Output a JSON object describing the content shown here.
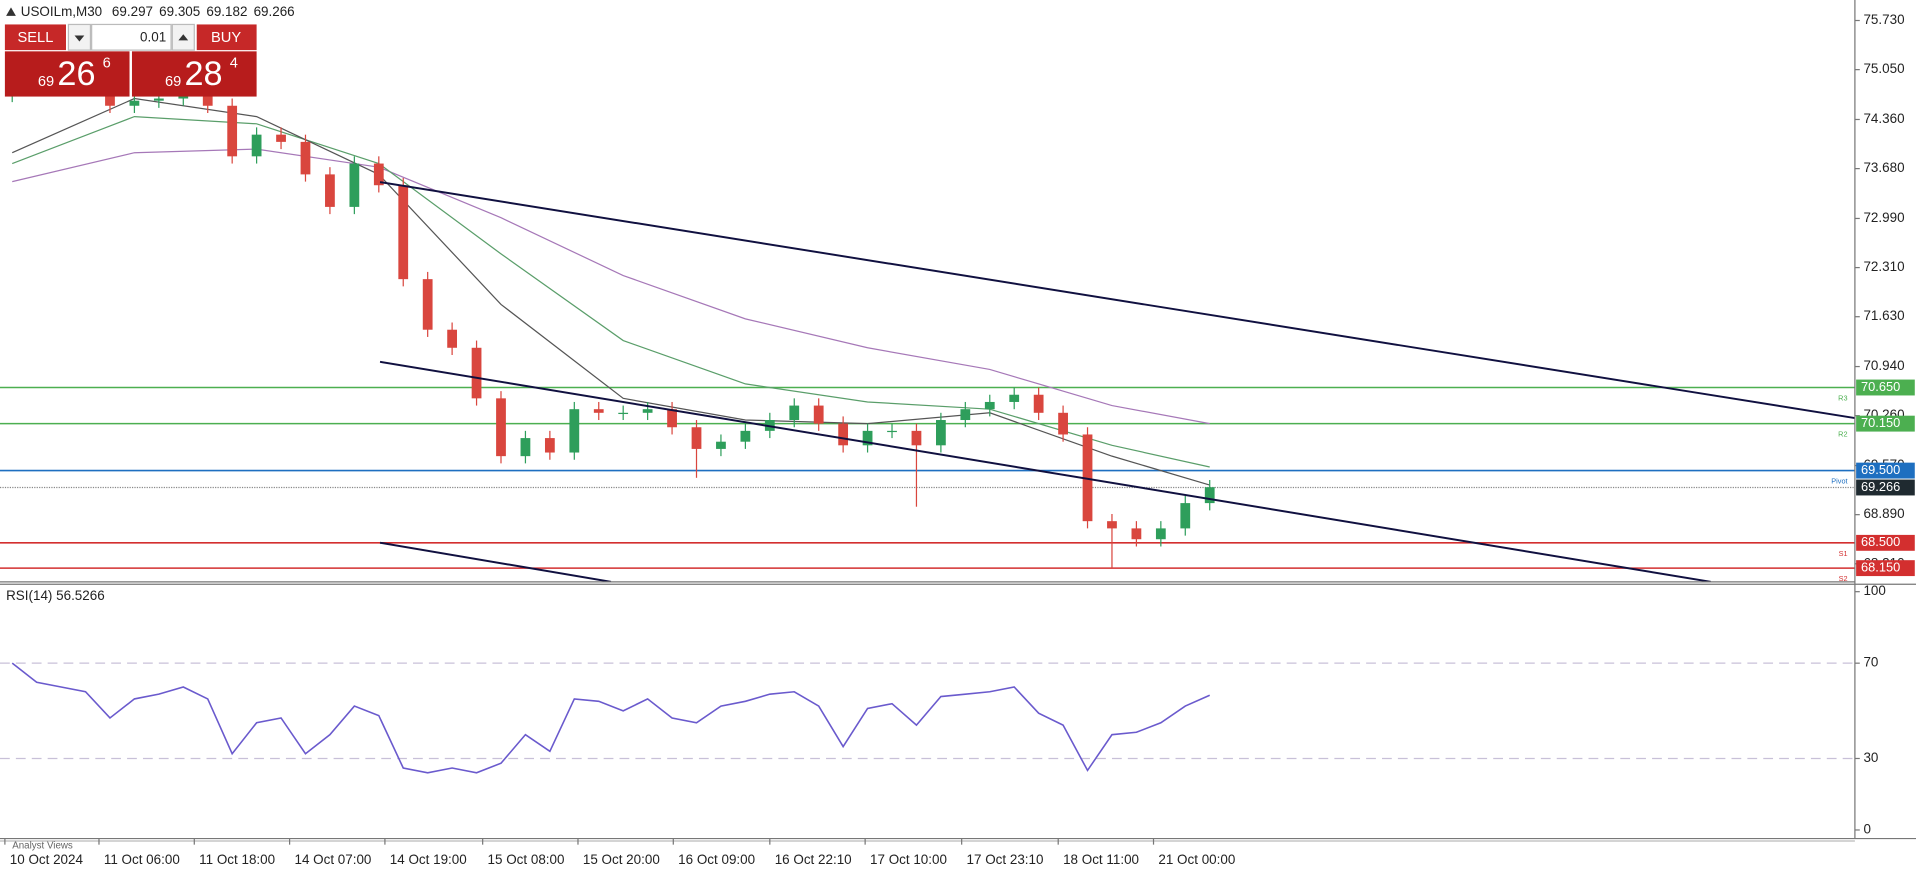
{
  "header": {
    "symbol": "USOILm,M30",
    "ohlc": [
      69.297,
      69.305,
      69.182,
      69.266
    ]
  },
  "trade_panel": {
    "sell": "SELL",
    "buy": "BUY",
    "lot": 0.01,
    "bid": {
      "big": "69",
      "main": "26",
      "small": "6"
    },
    "ask": {
      "big": "69",
      "main": "28",
      "small": "4"
    }
  },
  "footer": {
    "tab": "Analyst Views"
  },
  "chart_data": [
    {
      "type": "candlestick",
      "open": [
        74.7,
        74.8,
        74.9,
        74.92,
        74.8,
        74.55,
        74.62,
        74.65,
        74.7,
        74.55,
        73.85,
        74.15,
        74.05,
        73.6,
        73.15,
        73.75,
        73.45,
        72.15,
        71.45,
        71.2,
        70.5,
        69.7,
        69.95,
        69.75,
        70.35,
        70.3,
        70.3,
        70.35,
        70.1,
        69.8,
        69.9,
        70.05,
        70.2,
        70.4,
        70.15,
        69.85,
        70.05,
        70.05,
        69.85,
        70.2,
        70.35,
        70.45,
        70.55,
        70.3,
        70.0,
        68.8,
        68.7,
        68.55,
        68.7,
        69.05
      ],
      "high": [
        74.9,
        75.0,
        75.02,
        75.02,
        74.9,
        74.72,
        74.75,
        74.8,
        74.8,
        74.65,
        74.25,
        74.25,
        74.15,
        73.7,
        73.85,
        73.85,
        73.55,
        72.25,
        71.55,
        71.3,
        70.6,
        70.05,
        70.05,
        70.45,
        70.45,
        70.4,
        70.45,
        70.45,
        70.2,
        70.0,
        70.15,
        70.3,
        70.5,
        70.5,
        70.25,
        70.15,
        70.15,
        70.15,
        70.3,
        70.45,
        70.55,
        70.65,
        70.65,
        70.4,
        70.1,
        68.9,
        68.8,
        68.8,
        69.15,
        69.37
      ],
      "low": [
        74.6,
        74.7,
        74.8,
        74.7,
        74.45,
        74.45,
        74.52,
        74.55,
        74.45,
        73.75,
        73.75,
        73.95,
        73.5,
        73.05,
        73.05,
        73.35,
        72.05,
        71.35,
        71.1,
        70.4,
        69.6,
        69.6,
        69.65,
        69.65,
        70.2,
        70.2,
        70.2,
        70.0,
        69.4,
        69.7,
        69.8,
        69.95,
        70.1,
        70.05,
        69.75,
        69.75,
        69.95,
        69.0,
        69.75,
        70.1,
        70.25,
        70.35,
        70.2,
        69.9,
        68.7,
        68.15,
        68.45,
        68.45,
        68.6,
        68.95
      ],
      "close": [
        74.8,
        74.9,
        74.92,
        74.8,
        74.55,
        74.62,
        74.65,
        74.7,
        74.55,
        73.85,
        74.15,
        74.05,
        73.6,
        73.15,
        73.75,
        73.45,
        72.15,
        71.45,
        71.2,
        70.5,
        69.7,
        69.95,
        69.75,
        70.35,
        70.3,
        70.3,
        70.35,
        70.1,
        69.8,
        69.9,
        70.05,
        70.2,
        70.4,
        70.15,
        69.85,
        70.05,
        70.05,
        69.85,
        70.2,
        70.35,
        70.45,
        70.55,
        70.3,
        70.0,
        68.8,
        68.7,
        68.55,
        68.7,
        69.05,
        69.27
      ],
      "colors": {
        "up": "#2e9e5b",
        "down": "#d9463e"
      },
      "xlim": [
        -0.5,
        75.4
      ],
      "ylim": [
        67.96,
        75.98
      ],
      "yticks": [
        {
          "value": 75.73,
          "label": "75.730"
        },
        {
          "value": 75.05,
          "label": "75.050"
        },
        {
          "value": 74.36,
          "label": "74.360"
        },
        {
          "value": 73.68,
          "label": "73.680"
        },
        {
          "value": 72.99,
          "label": "72.990"
        },
        {
          "value": 72.31,
          "label": "72.310"
        },
        {
          "value": 71.63,
          "label": "71.630"
        },
        {
          "value": 70.94,
          "label": "70.940"
        },
        {
          "value": 70.26,
          "label": "70.260"
        },
        {
          "value": 69.57,
          "label": "69.570"
        },
        {
          "value": 68.89,
          "label": "68.890"
        },
        {
          "value": 68.21,
          "label": "68.210"
        }
      ],
      "xticks": [
        {
          "value": -0.3,
          "label": "10 Oct 2024"
        },
        {
          "value": 3.55,
          "label": "11 Oct 06:00"
        },
        {
          "value": 7.45,
          "label": "11 Oct 18:00"
        },
        {
          "value": 11.35,
          "label": "14 Oct 07:00"
        },
        {
          "value": 15.25,
          "label": "14 Oct 19:00"
        },
        {
          "value": 19.25,
          "label": "15 Oct 08:00"
        },
        {
          "value": 23.15,
          "label": "15 Oct 20:00"
        },
        {
          "value": 27.05,
          "label": "16 Oct 09:00"
        },
        {
          "value": 31,
          "label": "16 Oct 22:10"
        },
        {
          "value": 34.9,
          "label": "17 Oct 10:00"
        },
        {
          "value": 38.85,
          "label": "17 Oct 23:10"
        },
        {
          "value": 42.8,
          "label": "18 Oct 11:00"
        },
        {
          "value": 46.7,
          "label": "21 Oct 00:00"
        }
      ],
      "ma_index": [
        0,
        5,
        10,
        15,
        20,
        25,
        30,
        35,
        40,
        45,
        49
      ],
      "moving_averages": [
        {
          "color": "#a678b8",
          "values": [
            73.5,
            73.9,
            73.95,
            73.7,
            73.0,
            72.2,
            71.6,
            71.2,
            70.9,
            70.4,
            70.15
          ]
        },
        {
          "color": "#5a9e6a",
          "values": [
            73.75,
            74.4,
            74.3,
            73.75,
            72.5,
            71.3,
            70.7,
            70.45,
            70.35,
            69.85,
            69.55
          ]
        },
        {
          "color": "#555555",
          "values": [
            73.9,
            74.65,
            74.4,
            73.6,
            71.8,
            70.5,
            70.2,
            70.15,
            70.3,
            69.7,
            69.3
          ]
        }
      ],
      "levels": [
        {
          "name": "R3",
          "value": 70.65,
          "label": "70.650",
          "color": "#4caf50"
        },
        {
          "name": "R2",
          "value": 70.15,
          "label": "70.150",
          "color": "#4caf50"
        },
        {
          "name": "Pivot",
          "value": 69.5,
          "label": "69.500",
          "color": "#1e6fc0"
        },
        {
          "name": "S1",
          "value": 68.5,
          "label": "68.500",
          "color": "#d32f2f"
        },
        {
          "name": "S2",
          "value": 68.15,
          "label": "68.150",
          "color": "#d32f2f"
        }
      ],
      "last_price": 69.266
    },
    {
      "type": "line",
      "title": "RSI(14) 56.5266",
      "color": "#6a5acd",
      "values": [
        70,
        62,
        60,
        58,
        47,
        55,
        57,
        60,
        55,
        32,
        45,
        47,
        32,
        40,
        52,
        48,
        26,
        24,
        26,
        24,
        28,
        40,
        33,
        55,
        54,
        50,
        55,
        47,
        45,
        52,
        54,
        57,
        58,
        52,
        35,
        51,
        53,
        44,
        56,
        57,
        58,
        60,
        49,
        44,
        25,
        40,
        41,
        45,
        52,
        56.5266
      ],
      "ylim": [
        -3.6,
        103.1
      ],
      "yticks": [
        100,
        70,
        30,
        0
      ]
    }
  ]
}
